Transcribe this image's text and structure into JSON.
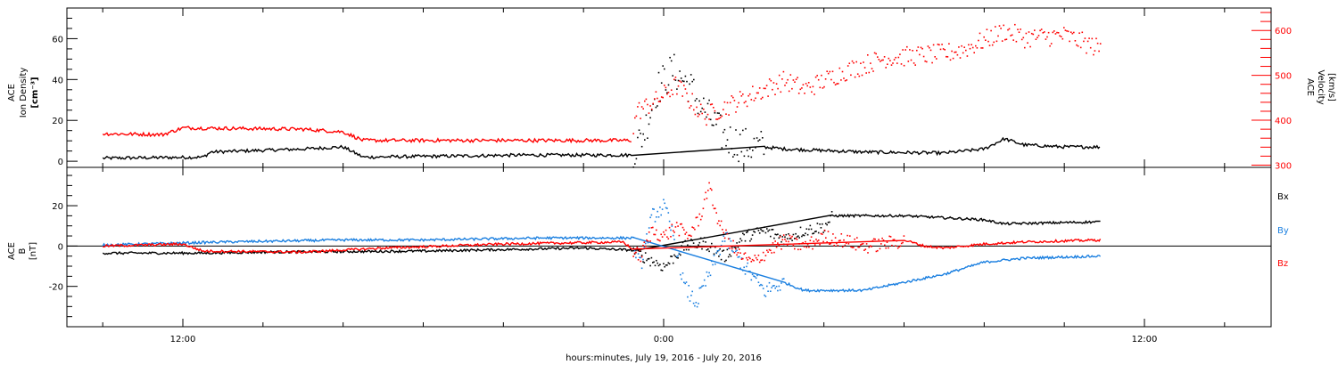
{
  "figure": {
    "xlabel": "hours:minutes, July 19, 2016 - July 20, 2016",
    "x_ticks": [
      {
        "h": -12,
        "label": "12:00"
      },
      {
        "h": 0,
        "label": "0:00"
      },
      {
        "h": 12,
        "label": "12:00"
      }
    ]
  },
  "chart_data": [
    {
      "type": "scatter",
      "title": "",
      "xlabel": "hours:minutes, July 19, 2016 - July 20, 2016",
      "xlim_hours": [
        -14.0,
        15.0
      ],
      "ylabel_lines": [
        "ACE",
        "Ion Density",
        "[cm⁻³]"
      ],
      "ylim": [
        -3,
        75
      ],
      "y_ticks": [
        0,
        20,
        40,
        60
      ],
      "ylabel_right_lines": [
        "ACE",
        "Velocity",
        "[km/s]"
      ],
      "ylim_right": [
        295,
        650
      ],
      "y_ticks_right": [
        300,
        400,
        500,
        600
      ],
      "colors": {
        "density": "#000000",
        "velocity": "#ff0000"
      },
      "series": [
        {
          "name": "",
          "axis": "left",
          "color": "#000000",
          "profile": [
            [
              -14.0,
              1.5
            ],
            [
              -11.5,
              2.0
            ],
            [
              -11.3,
              4.5
            ],
            [
              -9.0,
              6.0
            ],
            [
              -8.0,
              7.0
            ],
            [
              -7.5,
              2.0
            ],
            [
              -3.5,
              3.0
            ],
            [
              -0.8,
              3.0
            ],
            [
              -0.5,
              15.0
            ],
            [
              -0.2,
              35.0
            ],
            [
              0.2,
              45.0
            ],
            [
              0.6,
              38.0
            ],
            [
              1.0,
              25.0
            ],
            [
              1.5,
              12.0
            ],
            [
              2.0,
              8.0
            ],
            [
              3.0,
              6.0
            ],
            [
              5.0,
              4.5
            ],
            [
              7.0,
              4.0
            ],
            [
              8.0,
              6.0
            ],
            [
              8.5,
              11.0
            ],
            [
              9.0,
              8.0
            ],
            [
              10.0,
              7.0
            ],
            [
              10.9,
              7.0
            ]
          ]
        },
        {
          "name": "",
          "axis": "right",
          "color": "#ff0000",
          "profile": [
            [
              -14.0,
              370
            ],
            [
              -12.5,
              368
            ],
            [
              -12.0,
              383
            ],
            [
              -9.0,
              380
            ],
            [
              -8.0,
              374
            ],
            [
              -7.5,
              355
            ],
            [
              -4.0,
              355
            ],
            [
              -0.8,
              355
            ],
            [
              -0.7,
              420
            ],
            [
              -0.2,
              445
            ],
            [
              0.3,
              480
            ],
            [
              1.0,
              410
            ],
            [
              1.5,
              430
            ],
            [
              2.5,
              470
            ],
            [
              3.0,
              490
            ],
            [
              3.5,
              470
            ],
            [
              4.0,
              490
            ],
            [
              4.5,
              510
            ],
            [
              5.5,
              540
            ],
            [
              7.0,
              550
            ],
            [
              7.5,
              560
            ],
            [
              8.5,
              600
            ],
            [
              9.0,
              585
            ],
            [
              10.0,
              590
            ],
            [
              10.9,
              560
            ]
          ]
        }
      ]
    },
    {
      "type": "scatter",
      "title": "",
      "xlim_hours": [
        -14.0,
        15.0
      ],
      "ylabel_lines": [
        "ACE",
        "B",
        "[nT]"
      ],
      "ylim": [
        -40,
        39
      ],
      "y_ticks": [
        -20,
        0,
        20
      ],
      "zero_line": true,
      "legend_position": "right",
      "colors": {
        "Bx": "#000000",
        "By": "#1a7fe0",
        "Bz": "#ff0000"
      },
      "series": [
        {
          "name": "Bx",
          "color": "#000000",
          "profile": [
            [
              -14.0,
              -3.5
            ],
            [
              -11.5,
              -3.5
            ],
            [
              -10.0,
              -3.0
            ],
            [
              -6.0,
              -2.5
            ],
            [
              -2.0,
              -1.0
            ],
            [
              -0.8,
              -2.0
            ],
            [
              -0.5,
              -5.0
            ],
            [
              0.0,
              -10.0
            ],
            [
              0.5,
              0.0
            ],
            [
              1.0,
              2.0
            ],
            [
              1.5,
              -5.0
            ],
            [
              2.0,
              5.0
            ],
            [
              2.5,
              8.0
            ],
            [
              3.0,
              4.0
            ],
            [
              3.5,
              8.0
            ],
            [
              4.0,
              10.0
            ],
            [
              4.2,
              15.0
            ],
            [
              6.0,
              15.0
            ],
            [
              7.0,
              14.0
            ],
            [
              8.0,
              13.0
            ],
            [
              8.5,
              11.0
            ],
            [
              10.9,
              12.0
            ]
          ]
        },
        {
          "name": "By",
          "color": "#1a7fe0",
          "profile": [
            [
              -14.0,
              0.5
            ],
            [
              -11.0,
              2.0
            ],
            [
              -8.0,
              3.0
            ],
            [
              -6.0,
              3.0
            ],
            [
              -3.0,
              4.0
            ],
            [
              -0.8,
              4.0
            ],
            [
              -0.6,
              -10.0
            ],
            [
              -0.3,
              15.0
            ],
            [
              0.0,
              20.0
            ],
            [
              0.3,
              0.0
            ],
            [
              0.5,
              -20.0
            ],
            [
              0.8,
              -28.0
            ],
            [
              1.2,
              -10.0
            ],
            [
              1.5,
              5.0
            ],
            [
              2.0,
              -10.0
            ],
            [
              2.5,
              -22.0
            ],
            [
              3.0,
              -18.0
            ],
            [
              3.5,
              -22.0
            ],
            [
              5.0,
              -22.0
            ],
            [
              6.0,
              -18.0
            ],
            [
              7.0,
              -14.0
            ],
            [
              8.0,
              -8.0
            ],
            [
              9.0,
              -6.0
            ],
            [
              10.9,
              -5.0
            ]
          ]
        },
        {
          "name": "Bz",
          "color": "#ff0000",
          "profile": [
            [
              -14.0,
              0.0
            ],
            [
              -12.0,
              1.0
            ],
            [
              -11.5,
              -2.5
            ],
            [
              -9.0,
              -3.0
            ],
            [
              -7.0,
              -1.0
            ],
            [
              -4.0,
              1.0
            ],
            [
              -1.0,
              2.0
            ],
            [
              -0.6,
              -5.0
            ],
            [
              -0.3,
              8.0
            ],
            [
              0.0,
              5.0
            ],
            [
              0.3,
              10.0
            ],
            [
              0.6,
              5.0
            ],
            [
              0.9,
              15.0
            ],
            [
              1.1,
              30.0
            ],
            [
              1.4,
              10.0
            ],
            [
              1.8,
              -3.0
            ],
            [
              2.2,
              -8.0
            ],
            [
              2.6,
              -2.0
            ],
            [
              3.0,
              3.0
            ],
            [
              3.5,
              0.0
            ],
            [
              4.0,
              5.0
            ],
            [
              4.5,
              3.0
            ],
            [
              5.0,
              0.0
            ],
            [
              6.0,
              3.0
            ],
            [
              6.5,
              0.0
            ],
            [
              7.0,
              -1.0
            ],
            [
              8.0,
              1.0
            ],
            [
              9.0,
              2.0
            ],
            [
              10.9,
              3.0
            ]
          ]
        }
      ]
    }
  ]
}
